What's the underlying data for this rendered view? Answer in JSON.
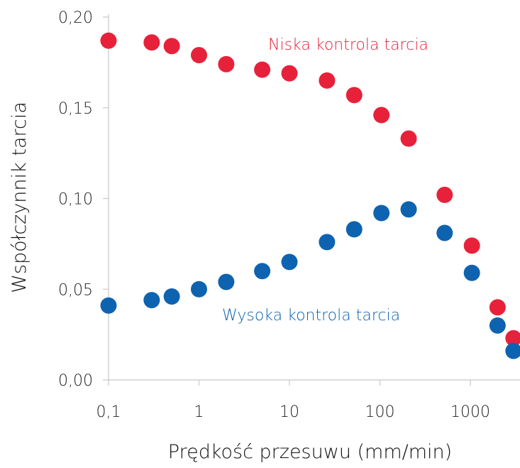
{
  "chart_data": {
    "type": "scatter",
    "title": "",
    "xlabel": "Prędkość przesuwu (mm/min)",
    "ylabel": "Współczynnik tarcia",
    "x_scale": "log",
    "xlim": [
      0.1,
      3000
    ],
    "ylim": [
      0,
      0.2
    ],
    "grid": false,
    "x_ticks": [
      {
        "value": 0.1,
        "label": "0,1"
      },
      {
        "value": 1,
        "label": "1"
      },
      {
        "value": 10,
        "label": "10"
      },
      {
        "value": 100,
        "label": "100"
      },
      {
        "value": 1000,
        "label": "1000"
      }
    ],
    "y_ticks": [
      {
        "value": 0,
        "label": "0,00"
      },
      {
        "value": 0.05,
        "label": "0,05"
      },
      {
        "value": 0.1,
        "label": "0,10"
      },
      {
        "value": 0.15,
        "label": "0,15"
      },
      {
        "value": 0.2,
        "label": "0,20"
      }
    ],
    "series": [
      {
        "name": "Niska kontrola tarcia",
        "color": "#e8213a",
        "points": [
          {
            "x": 0.1,
            "y": 0.187
          },
          {
            "x": 0.3,
            "y": 0.186
          },
          {
            "x": 0.5,
            "y": 0.184
          },
          {
            "x": 1,
            "y": 0.179
          },
          {
            "x": 2,
            "y": 0.174
          },
          {
            "x": 5,
            "y": 0.171
          },
          {
            "x": 10,
            "y": 0.169
          },
          {
            "x": 26,
            "y": 0.165
          },
          {
            "x": 52,
            "y": 0.157
          },
          {
            "x": 104,
            "y": 0.146
          },
          {
            "x": 208,
            "y": 0.133
          },
          {
            "x": 520,
            "y": 0.102
          },
          {
            "x": 1040,
            "y": 0.074
          },
          {
            "x": 2000,
            "y": 0.04
          },
          {
            "x": 3000,
            "y": 0.023
          }
        ]
      },
      {
        "name": "Wysoka kontrola tarcia",
        "color": "#0e63b0",
        "points": [
          {
            "x": 0.1,
            "y": 0.041
          },
          {
            "x": 0.3,
            "y": 0.044
          },
          {
            "x": 0.5,
            "y": 0.046
          },
          {
            "x": 1,
            "y": 0.05
          },
          {
            "x": 2,
            "y": 0.054
          },
          {
            "x": 5,
            "y": 0.06
          },
          {
            "x": 10,
            "y": 0.065
          },
          {
            "x": 26,
            "y": 0.076
          },
          {
            "x": 52,
            "y": 0.083
          },
          {
            "x": 104,
            "y": 0.092
          },
          {
            "x": 208,
            "y": 0.094
          },
          {
            "x": 520,
            "y": 0.081
          },
          {
            "x": 1040,
            "y": 0.059
          },
          {
            "x": 2000,
            "y": 0.03
          },
          {
            "x": 3000,
            "y": 0.016
          }
        ]
      }
    ]
  }
}
